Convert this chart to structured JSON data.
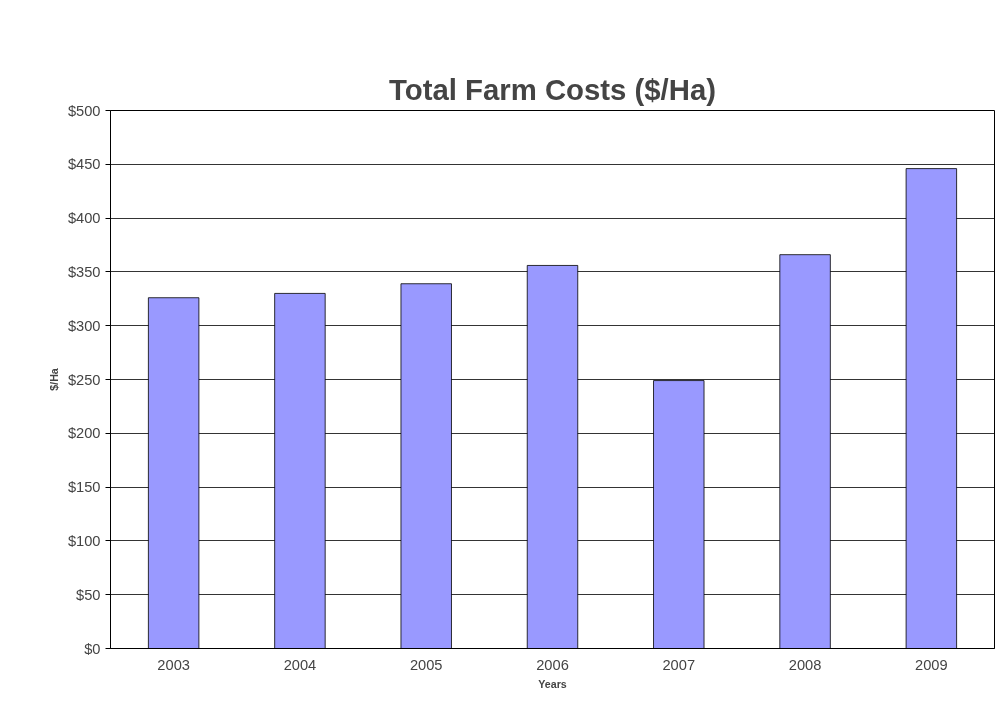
{
  "chart_data": {
    "type": "bar",
    "title": "Total Farm Costs ($/Ha)",
    "xlabel": "Years",
    "ylabel": "$/Ha",
    "categories": [
      "2003",
      "2004",
      "2005",
      "2006",
      "2007",
      "2008",
      "2009"
    ],
    "values": [
      326,
      330,
      339,
      356,
      249,
      366,
      446
    ],
    "color": "#9999ff",
    "ylim": [
      0,
      500
    ],
    "yticks": [
      {
        "value": 0,
        "label": "$0"
      },
      {
        "value": 50,
        "label": "$50"
      },
      {
        "value": 100,
        "label": "$100"
      },
      {
        "value": 150,
        "label": "$150"
      },
      {
        "value": 200,
        "label": "$200"
      },
      {
        "value": 250,
        "label": "$250"
      },
      {
        "value": 300,
        "label": "$300"
      },
      {
        "value": 350,
        "label": "$350"
      },
      {
        "value": 400,
        "label": "$400"
      },
      {
        "value": 450,
        "label": "$450"
      },
      {
        "value": 500,
        "label": "$500"
      }
    ],
    "grid": "y"
  }
}
